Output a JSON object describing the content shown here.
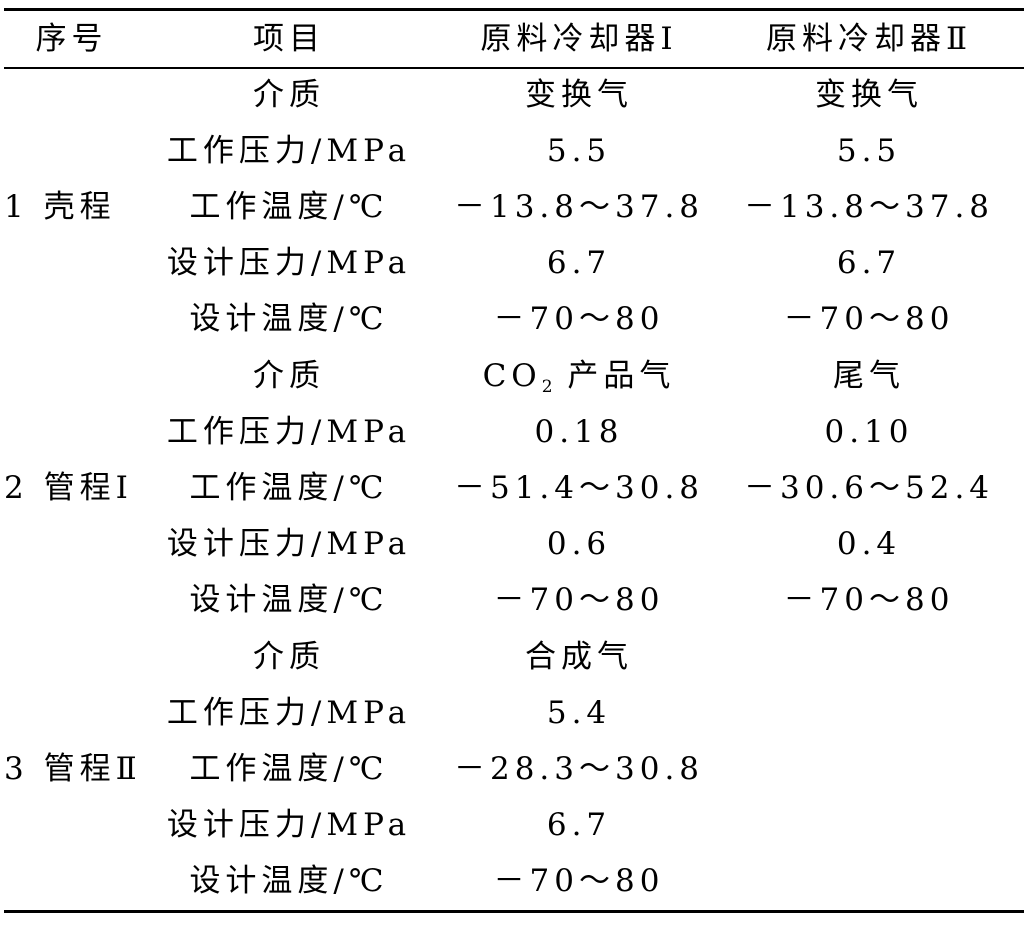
{
  "header": {
    "seq": "序号",
    "item": "项目",
    "col_a": "原料冷却器Ⅰ",
    "col_b": "原料冷却器Ⅱ"
  },
  "groups": [
    {
      "label": "1 壳程",
      "rows": [
        {
          "item": "介质",
          "a": "变换气",
          "b": "变换气"
        },
        {
          "item": "工作压力/MPa",
          "a": "5.5",
          "b": "5.5"
        },
        {
          "item": "工作温度/℃",
          "a": "－13.8～37.8",
          "b": "－13.8～37.8"
        },
        {
          "item": "设计压力/MPa",
          "a": "6.7",
          "b": "6.7"
        },
        {
          "item": "设计温度/℃",
          "a": "－70～80",
          "b": "－70～80"
        }
      ]
    },
    {
      "label": "2 管程Ⅰ",
      "rows": [
        {
          "item": "介质",
          "a_prefix": "CO",
          "a_sub": "2",
          "a_suffix": " 产品气",
          "b": "尾气"
        },
        {
          "item": "工作压力/MPa",
          "a": "0.18",
          "b": "0.10"
        },
        {
          "item": "工作温度/℃",
          "a": "－51.4～30.8",
          "b": "－30.6～52.4"
        },
        {
          "item": "设计压力/MPa",
          "a": "0.6",
          "b": "0.4"
        },
        {
          "item": "设计温度/℃",
          "a": "－70～80",
          "b": "－70～80"
        }
      ]
    },
    {
      "label": "3 管程Ⅱ",
      "rows": [
        {
          "item": "介质",
          "a": "合成气",
          "b": ""
        },
        {
          "item": "工作压力/MPa",
          "a": "5.4",
          "b": ""
        },
        {
          "item": "工作温度/℃",
          "a": "－28.3～30.8",
          "b": ""
        },
        {
          "item": "设计压力/MPa",
          "a": "6.7",
          "b": ""
        },
        {
          "item": "设计温度/℃",
          "a": "－70～80",
          "b": ""
        }
      ]
    }
  ]
}
